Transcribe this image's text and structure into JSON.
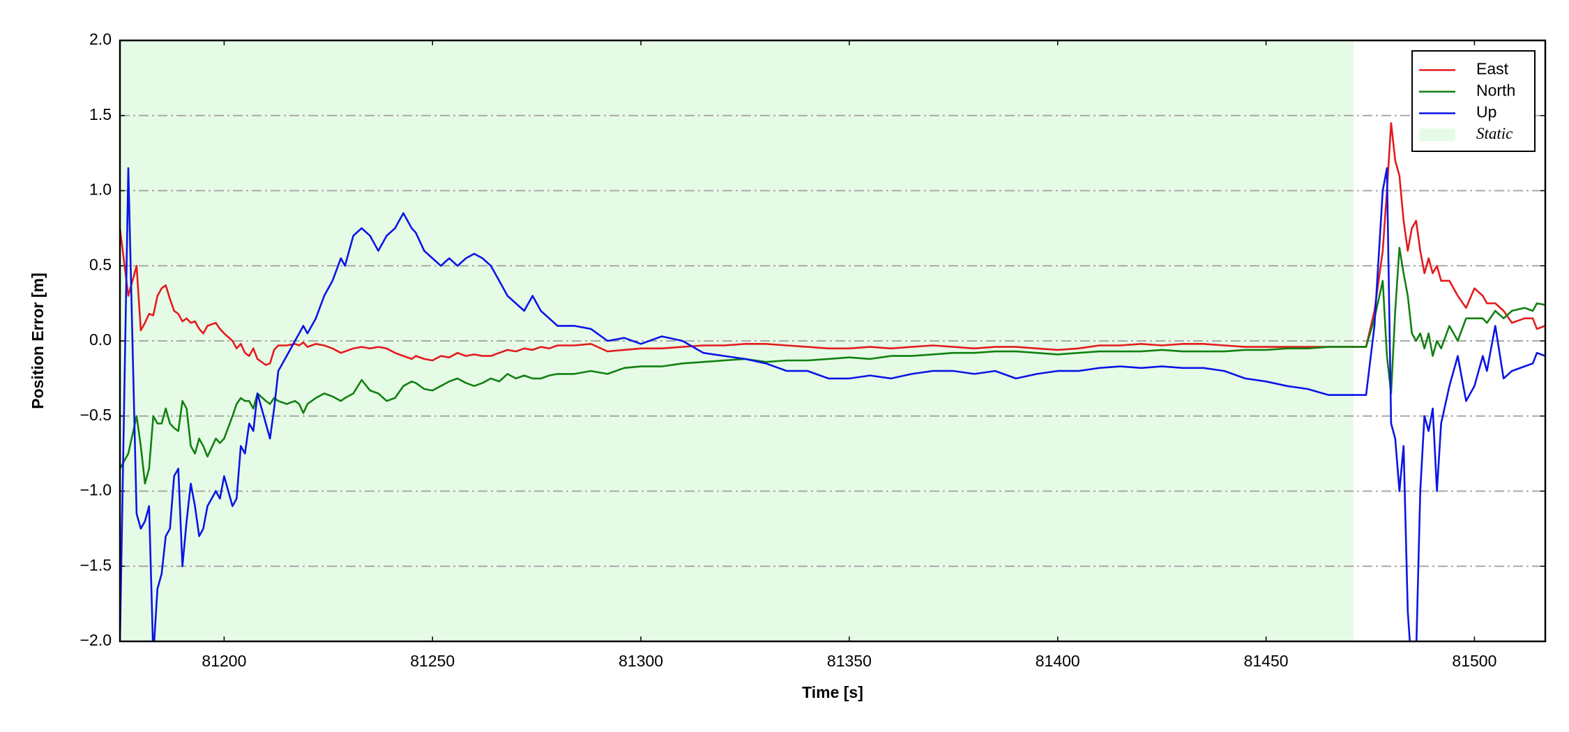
{
  "chart_data": {
    "type": "line",
    "xlabel": "Time [s]",
    "ylabel": "Position Error [m]",
    "xlim": [
      81175,
      81517
    ],
    "ylim": [
      -2,
      2
    ],
    "xticks": [
      81200,
      81250,
      81300,
      81350,
      81400,
      81450,
      81500
    ],
    "yticks": [
      {
        "value": -2,
        "label": "−2.0"
      },
      {
        "value": -1.5,
        "label": "−1.5"
      },
      {
        "value": -1,
        "label": "−1.0"
      },
      {
        "value": -0.5,
        "label": "−0.5"
      },
      {
        "value": 0,
        "label": "0.0"
      },
      0.5,
      {
        "value": 1,
        "label": "1.0"
      },
      1.5,
      {
        "value": 2,
        "label": "2.0"
      }
    ],
    "grid": true,
    "legend": "upper right",
    "span": {
      "name": "Static",
      "color": "#e6fbe6",
      "x": [
        81175,
        81471
      ]
    },
    "x": [
      81175,
      81177,
      81179,
      81180,
      81181,
      81182,
      81183,
      81184,
      81185,
      81186,
      81187,
      81188,
      81189,
      81190,
      81191,
      81192,
      81193,
      81194,
      81195,
      81196,
      81198,
      81199,
      81200,
      81202,
      81203,
      81204,
      81205,
      81206,
      81207,
      81208,
      81210,
      81211,
      81212,
      81213,
      81215,
      81217,
      81218,
      81219,
      81220,
      81222,
      81224,
      81226,
      81228,
      81229,
      81231,
      81233,
      81235,
      81237,
      81239,
      81241,
      81243,
      81245,
      81246,
      81248,
      81250,
      81252,
      81254,
      81256,
      81258,
      81260,
      81262,
      81264,
      81266,
      81268,
      81270,
      81272,
      81274,
      81276,
      81278,
      81280,
      81284,
      81288,
      81292,
      81296,
      81300,
      81305,
      81310,
      81315,
      81320,
      81325,
      81330,
      81335,
      81340,
      81345,
      81350,
      81355,
      81360,
      81365,
      81370,
      81375,
      81380,
      81385,
      81390,
      81395,
      81400,
      81405,
      81410,
      81415,
      81420,
      81425,
      81430,
      81435,
      81440,
      81445,
      81450,
      81455,
      81460,
      81465,
      81470,
      81474,
      81476,
      81478,
      81479,
      81480,
      81481,
      81482,
      81483,
      81484,
      81485,
      81486,
      81487,
      81488,
      81489,
      81490,
      81491,
      81492,
      81494,
      81496,
      81498,
      81500,
      81502,
      81503,
      81505,
      81507,
      81509,
      81512,
      81514,
      81515,
      81517
    ],
    "series": [
      {
        "name": "East",
        "color": "#e31a1c",
        "values": [
          0.75,
          0.3,
          0.5,
          0.07,
          0.12,
          0.18,
          0.17,
          0.3,
          0.35,
          0.37,
          0.28,
          0.2,
          0.18,
          0.13,
          0.15,
          0.12,
          0.13,
          0.08,
          0.05,
          0.1,
          0.12,
          0.08,
          0.05,
          0.0,
          -0.05,
          -0.02,
          -0.08,
          -0.1,
          -0.05,
          -0.12,
          -0.16,
          -0.15,
          -0.06,
          -0.03,
          -0.03,
          -0.02,
          -0.03,
          -0.01,
          -0.04,
          -0.02,
          -0.03,
          -0.05,
          -0.08,
          -0.07,
          -0.05,
          -0.04,
          -0.05,
          -0.04,
          -0.05,
          -0.08,
          -0.1,
          -0.12,
          -0.1,
          -0.12,
          -0.13,
          -0.1,
          -0.11,
          -0.08,
          -0.1,
          -0.09,
          -0.1,
          -0.1,
          -0.08,
          -0.06,
          -0.07,
          -0.05,
          -0.06,
          -0.04,
          -0.05,
          -0.03,
          -0.03,
          -0.02,
          -0.07,
          -0.06,
          -0.05,
          -0.05,
          -0.04,
          -0.03,
          -0.03,
          -0.02,
          -0.02,
          -0.03,
          -0.04,
          -0.05,
          -0.05,
          -0.04,
          -0.05,
          -0.04,
          -0.03,
          -0.04,
          -0.05,
          -0.04,
          -0.04,
          -0.05,
          -0.06,
          -0.05,
          -0.03,
          -0.03,
          -0.02,
          -0.03,
          -0.02,
          -0.02,
          -0.03,
          -0.04,
          -0.04,
          -0.04,
          -0.04,
          -0.04,
          -0.04,
          -0.04,
          0.2,
          0.6,
          1.0,
          1.45,
          1.2,
          1.1,
          0.8,
          0.6,
          0.75,
          0.8,
          0.6,
          0.45,
          0.55,
          0.45,
          0.5,
          0.4,
          0.4,
          0.3,
          0.22,
          0.35,
          0.3,
          0.25,
          0.25,
          0.2,
          0.12,
          0.15,
          0.15,
          0.08,
          0.1
        ]
      },
      {
        "name": "North",
        "color": "#118011",
        "values": [
          -0.85,
          -0.75,
          -0.5,
          -0.7,
          -0.95,
          -0.85,
          -0.5,
          -0.55,
          -0.55,
          -0.45,
          -0.55,
          -0.58,
          -0.6,
          -0.4,
          -0.45,
          -0.7,
          -0.75,
          -0.65,
          -0.7,
          -0.77,
          -0.65,
          -0.68,
          -0.65,
          -0.5,
          -0.42,
          -0.38,
          -0.4,
          -0.4,
          -0.45,
          -0.35,
          -0.4,
          -0.42,
          -0.38,
          -0.4,
          -0.42,
          -0.4,
          -0.42,
          -0.48,
          -0.42,
          -0.38,
          -0.35,
          -0.37,
          -0.4,
          -0.38,
          -0.35,
          -0.26,
          -0.33,
          -0.35,
          -0.4,
          -0.38,
          -0.3,
          -0.27,
          -0.28,
          -0.32,
          -0.33,
          -0.3,
          -0.27,
          -0.25,
          -0.28,
          -0.3,
          -0.28,
          -0.25,
          -0.27,
          -0.22,
          -0.25,
          -0.23,
          -0.25,
          -0.25,
          -0.23,
          -0.22,
          -0.22,
          -0.2,
          -0.22,
          -0.18,
          -0.17,
          -0.17,
          -0.15,
          -0.14,
          -0.13,
          -0.12,
          -0.14,
          -0.13,
          -0.13,
          -0.12,
          -0.11,
          -0.12,
          -0.1,
          -0.1,
          -0.09,
          -0.08,
          -0.08,
          -0.07,
          -0.07,
          -0.08,
          -0.09,
          -0.08,
          -0.07,
          -0.07,
          -0.07,
          -0.06,
          -0.07,
          -0.07,
          -0.07,
          -0.06,
          -0.06,
          -0.05,
          -0.05,
          -0.04,
          -0.04,
          -0.04,
          0.15,
          0.4,
          -0.1,
          -0.35,
          0.2,
          0.62,
          0.45,
          0.3,
          0.05,
          0.0,
          0.05,
          -0.05,
          0.05,
          -0.1,
          0.0,
          -0.05,
          0.1,
          0.0,
          0.15,
          0.15,
          0.15,
          0.12,
          0.2,
          0.15,
          0.2,
          0.22,
          0.2,
          0.25,
          0.24
        ]
      },
      {
        "name": "Up",
        "color": "#0a14e6",
        "values": [
          -2.0,
          1.15,
          -1.15,
          -1.25,
          -1.2,
          -1.1,
          -2.1,
          -1.65,
          -1.55,
          -1.3,
          -1.25,
          -0.9,
          -0.85,
          -1.5,
          -1.2,
          -0.95,
          -1.1,
          -1.3,
          -1.25,
          -1.1,
          -1.0,
          -1.05,
          -0.9,
          -1.1,
          -1.05,
          -0.7,
          -0.75,
          -0.55,
          -0.6,
          -0.35,
          -0.55,
          -0.65,
          -0.45,
          -0.2,
          -0.1,
          0.0,
          0.05,
          0.1,
          0.05,
          0.15,
          0.3,
          0.4,
          0.55,
          0.5,
          0.7,
          0.75,
          0.7,
          0.6,
          0.7,
          0.75,
          0.85,
          0.75,
          0.72,
          0.6,
          0.55,
          0.5,
          0.55,
          0.5,
          0.55,
          0.58,
          0.55,
          0.5,
          0.4,
          0.3,
          0.25,
          0.2,
          0.3,
          0.2,
          0.15,
          0.1,
          0.1,
          0.08,
          0.0,
          0.02,
          -0.02,
          0.03,
          0.0,
          -0.08,
          -0.1,
          -0.12,
          -0.15,
          -0.2,
          -0.2,
          -0.25,
          -0.25,
          -0.23,
          -0.25,
          -0.22,
          -0.2,
          -0.2,
          -0.22,
          -0.2,
          -0.25,
          -0.22,
          -0.2,
          -0.2,
          -0.18,
          -0.17,
          -0.18,
          -0.17,
          -0.18,
          -0.18,
          -0.2,
          -0.25,
          -0.27,
          -0.3,
          -0.32,
          -0.36,
          -0.36,
          -0.36,
          0.1,
          1.0,
          1.15,
          -0.55,
          -0.65,
          -1.0,
          -0.7,
          -1.8,
          -2.2,
          -2.1,
          -1.0,
          -0.5,
          -0.6,
          -0.45,
          -1.0,
          -0.55,
          -0.3,
          -0.1,
          -0.4,
          -0.3,
          -0.1,
          -0.2,
          0.1,
          -0.25,
          -0.2,
          -0.17,
          -0.15,
          -0.08,
          -0.1
        ]
      }
    ]
  }
}
